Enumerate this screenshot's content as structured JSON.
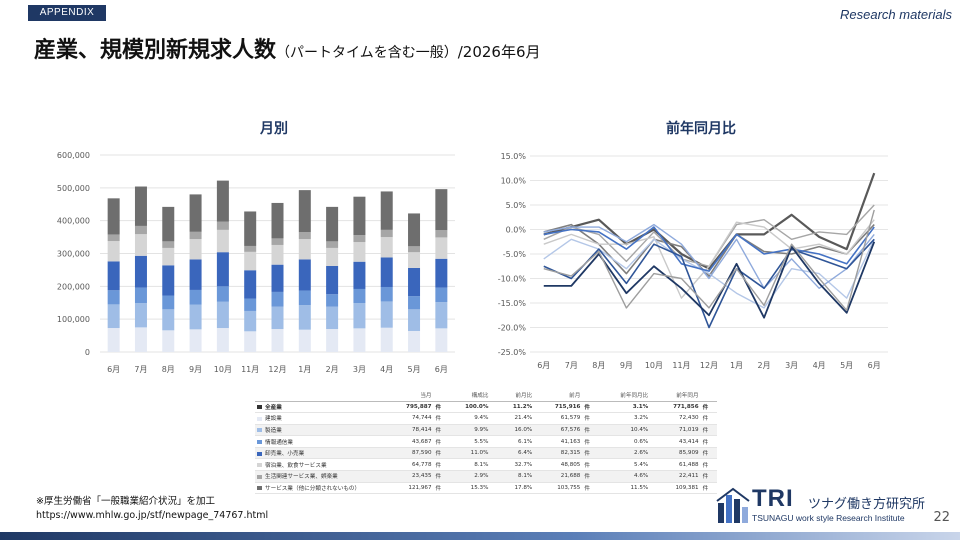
{
  "header": {
    "appendix": "APPENDIX",
    "research": "Research materials",
    "title_main": "産業、規模別新規求人数",
    "title_sub": "（パートタイムを含む一般）",
    "title_date": "/2026年6月"
  },
  "chart_data": [
    {
      "type": "bar",
      "stacked": true,
      "title": "月別",
      "categories": [
        "6月",
        "7月",
        "8月",
        "9月",
        "10月",
        "11月",
        "12月",
        "1月",
        "2月",
        "3月",
        "4月",
        "5月",
        "6月"
      ],
      "ylim": [
        0,
        600000
      ],
      "yticks": [
        "0",
        "100,000",
        "200,000",
        "300,000",
        "400,000",
        "500,000",
        "600,000"
      ],
      "grid": true,
      "series": [
        {
          "color": "#e4e9f4",
          "values": [
            73000,
            75000,
            66000,
            69000,
            73000,
            63000,
            70000,
            68000,
            70000,
            72000,
            74000,
            64000,
            72000
          ]
        },
        {
          "color": "#9fbde6",
          "values": [
            72000,
            74000,
            64000,
            75000,
            80000,
            62000,
            68000,
            75000,
            68000,
            77000,
            80000,
            66000,
            80000
          ]
        },
        {
          "color": "#6a97d8",
          "values": [
            43000,
            47000,
            42000,
            45000,
            47000,
            38000,
            45000,
            44000,
            38000,
            43000,
            44000,
            40000,
            44000
          ]
        },
        {
          "color": "#3a66bc",
          "values": [
            88000,
            97000,
            92000,
            93000,
            104000,
            86000,
            83000,
            95000,
            86000,
            83000,
            90000,
            86000,
            88000
          ]
        },
        {
          "color": "#d5d5d5",
          "values": [
            62000,
            66000,
            53000,
            62000,
            68000,
            56000,
            60000,
            62000,
            55000,
            60000,
            62000,
            48000,
            65000
          ]
        },
        {
          "color": "#a6a6a6",
          "values": [
            20000,
            25000,
            20000,
            22000,
            25000,
            18000,
            20000,
            21000,
            20000,
            21000,
            22000,
            18000,
            22000
          ]
        },
        {
          "color": "#6e6e6e",
          "values": [
            110000,
            120000,
            105000,
            114000,
            125000,
            105000,
            108000,
            128000,
            105000,
            117000,
            117000,
            100000,
            125000
          ]
        }
      ]
    },
    {
      "type": "line",
      "title": "前年同月比",
      "categories": [
        "6月",
        "7月",
        "8月",
        "9月",
        "10月",
        "11月",
        "12月",
        "1月",
        "2月",
        "3月",
        "4月",
        "5月",
        "6月"
      ],
      "ylim": [
        -25,
        15
      ],
      "yticks": [
        "15.0%",
        "10.0%",
        "5.0%",
        "0.0%",
        "-5.0%",
        "-10.0%",
        "-15.0%",
        "-20.0%",
        "-25.0%"
      ],
      "grid": true,
      "series": [
        {
          "color": "#595959",
          "width": 2.2,
          "values": [
            -1,
            0.5,
            2,
            -3,
            0,
            -5,
            -8,
            -1,
            -1,
            3,
            -1.5,
            -4,
            11.5
          ]
        },
        {
          "color": "#7f7f7f",
          "width": 1.6,
          "values": [
            -0.5,
            1,
            -3,
            -9,
            -2,
            -3.5,
            -9.5,
            -1,
            -4.5,
            -5,
            -3.5,
            -5,
            1
          ]
        },
        {
          "color": "#a6a6a6",
          "width": 1.4,
          "values": [
            -2,
            0.5,
            -1,
            -6.5,
            -0.5,
            -6,
            -7.5,
            1,
            2,
            -2,
            -0.5,
            -1,
            5
          ]
        },
        {
          "color": "#c9c9c9",
          "width": 1.4,
          "values": [
            -3,
            -1,
            -3,
            -3,
            -1.5,
            -14,
            -7.5,
            1.5,
            0.5,
            -4,
            -3,
            -5,
            2
          ]
        },
        {
          "color": "#b4c7e7",
          "width": 1.4,
          "values": [
            -6,
            -2,
            -4,
            -8,
            -2,
            -6,
            -9,
            -13,
            -16,
            -8,
            -9,
            -14,
            -2
          ]
        },
        {
          "color": "#8faadc",
          "width": 1.4,
          "values": [
            -0.5,
            0.5,
            0.5,
            -2.5,
            1,
            -3,
            -10,
            -2,
            -12,
            -6,
            -12,
            -8,
            -1
          ]
        },
        {
          "color": "#4472c4",
          "width": 1.6,
          "values": [
            -1,
            0,
            -0.5,
            -4,
            0.5,
            -7,
            -8.5,
            -1,
            -5,
            -4,
            -5,
            -7,
            0.5
          ]
        },
        {
          "color": "#2f5597",
          "width": 1.6,
          "values": [
            -7.5,
            -10,
            -4,
            -11,
            -3,
            -5.5,
            -20,
            -8,
            -12,
            -4,
            -6,
            -8,
            -2
          ]
        },
        {
          "color": "#1f3864",
          "width": 1.8,
          "values": [
            -11.5,
            -11.5,
            -5,
            -13,
            -7.5,
            -12,
            -17.5,
            -7,
            -18,
            -3.5,
            -11,
            -17,
            -2.5
          ]
        },
        {
          "color": "#9e9e9e",
          "width": 1.4,
          "values": [
            -8,
            -9.5,
            -4.5,
            -16,
            -9,
            -10,
            -16,
            -8,
            -15.5,
            -3,
            -10,
            -16.5,
            4
          ]
        }
      ]
    }
  ],
  "table": {
    "headers": [
      "当月",
      "構成比",
      "前月比",
      "前月",
      "",
      "前年同月比",
      "前年同月",
      ""
    ],
    "rows": [
      {
        "label": "全産業",
        "swatch": "#333333",
        "vals": [
          "795,887",
          "件",
          "100.0%",
          "11.2%",
          "715,916",
          "件",
          "3.1%",
          "771,856",
          "件"
        ],
        "total": true
      },
      {
        "label": "建設業",
        "swatch": "#e4e9f4",
        "vals": [
          "74,744",
          "件",
          "9.4%",
          "21.4%",
          "61,579",
          "件",
          "3.2%",
          "72,430",
          "件"
        ]
      },
      {
        "label": "製造業",
        "swatch": "#9fbde6",
        "vals": [
          "78,414",
          "件",
          "9.9%",
          "16.0%",
          "67,576",
          "件",
          "10.4%",
          "71,019",
          "件"
        ]
      },
      {
        "label": "情報通信業",
        "swatch": "#6a97d8",
        "vals": [
          "43,687",
          "件",
          "5.5%",
          "6.1%",
          "41,163",
          "件",
          "0.6%",
          "43,414",
          "件"
        ]
      },
      {
        "label": "卸売業、小売業",
        "swatch": "#3a66bc",
        "vals": [
          "87,590",
          "件",
          "11.0%",
          "6.4%",
          "82,315",
          "件",
          "2.6%",
          "85,909",
          "件"
        ]
      },
      {
        "label": "宿泊業、飲食サービス業",
        "swatch": "#d5d5d5",
        "vals": [
          "64,778",
          "件",
          "8.1%",
          "32.7%",
          "48,805",
          "件",
          "5.4%",
          "61,488",
          "件"
        ]
      },
      {
        "label": "生活関連サービス業、娯楽業",
        "swatch": "#a6a6a6",
        "vals": [
          "23,435",
          "件",
          "2.9%",
          "8.1%",
          "21,688",
          "件",
          "4.6%",
          "22,411",
          "件"
        ]
      },
      {
        "label": "サービス業（他に分類されないもの）",
        "swatch": "#6e6e6e",
        "vals": [
          "121,967",
          "件",
          "15.3%",
          "17.8%",
          "103,755",
          "件",
          "11.5%",
          "109,381",
          "件"
        ]
      }
    ]
  },
  "source": {
    "line1": "※厚生労働省「一般職業紹介状況」を加工",
    "line2": "https://www.mhlw.go.jp/stf/newpage_74767.html"
  },
  "logo": {
    "mark": "TRI",
    "jp": "ツナグ働き方研究所",
    "en": "TSUNAGU work style Research Institute"
  },
  "page_number": "22"
}
